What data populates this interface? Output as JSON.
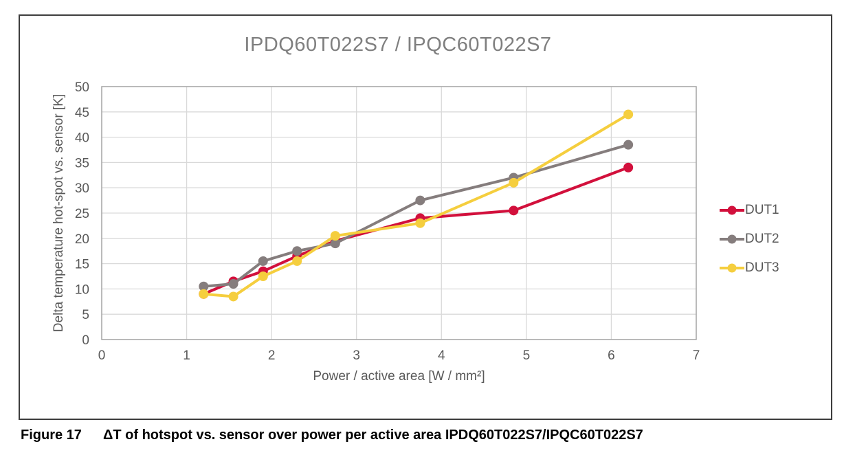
{
  "figure": {
    "caption_label": "Figure 17",
    "caption_text": "ΔT of hotspot vs. sensor over power per active area IPDQ60T022S7/IPQC60T022S7"
  },
  "chart_data": {
    "type": "line",
    "title": "IPDQ60T022S7 / IPQC60T022S7",
    "xlabel": "Power / active area [W / mm²]",
    "ylabel": "Delta temperature hot-spot vs. sensor [K]",
    "xlim": [
      0,
      7
    ],
    "ylim": [
      0,
      50
    ],
    "xticks": [
      0,
      1,
      2,
      3,
      4,
      5,
      6,
      7
    ],
    "yticks": [
      0,
      5,
      10,
      15,
      20,
      25,
      30,
      35,
      40,
      45,
      50
    ],
    "grid": true,
    "legend_position": "right",
    "x": [
      1.2,
      1.55,
      1.9,
      2.3,
      2.75,
      3.75,
      4.85,
      6.2
    ],
    "series": [
      {
        "name": "DUT1",
        "color": "#d2103c",
        "values": [
          9,
          11.5,
          13.5,
          16.5,
          19.5,
          24,
          25.5,
          34
        ]
      },
      {
        "name": "DUT2",
        "color": "#857d7d",
        "values": [
          10.5,
          11,
          15.5,
          17.5,
          19,
          27.5,
          32,
          38.5
        ]
      },
      {
        "name": "DUT3",
        "color": "#f5ce3e",
        "values": [
          9,
          8.5,
          12.5,
          15.5,
          20.5,
          23,
          31,
          44.5
        ]
      }
    ]
  },
  "style": {
    "grid_color": "#d9d9d9",
    "frame_color": "#a6a6a6",
    "title_color": "#7f7f7f"
  }
}
